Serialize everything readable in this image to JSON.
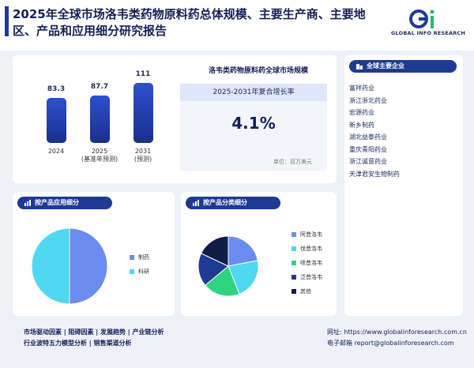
{
  "header": {
    "title": "2025年全球市场洛韦类药物原料药总体规模、主要生产商、主要地区、产品和应用细分研究报告",
    "logo_text": "GLOBAL INFO RESEARCH"
  },
  "market": {
    "title": "洛韦类药物原料药全球市场规模",
    "cagr_label": "2025-2031年复合增长率",
    "cagr_value": "4.1%",
    "unit": "单位：百万美元",
    "bars": [
      {
        "value": "83.3",
        "year": "2024",
        "note": ""
      },
      {
        "value": "87.7",
        "year": "2025",
        "note": "(基准年预测)"
      },
      {
        "value": "111",
        "year": "2031",
        "note": "(预测)"
      }
    ]
  },
  "companies": {
    "title": "全球主要企业",
    "items": [
      "富祥药业",
      "浙江浙北药业",
      "宏源药业",
      "新乡制药",
      "湖北益泰药业",
      "重庆青阳药业",
      "浙江诚意药业",
      "天津君安生物制药"
    ]
  },
  "application": {
    "title": "按产品应用细分",
    "legend": [
      "制药",
      "科研"
    ]
  },
  "product_type": {
    "title": "按产品分类细分",
    "legend": [
      "阿昔洛韦",
      "伐昔洛韦",
      "喷昔洛韦",
      "泛昔洛韦",
      "其他"
    ]
  },
  "footer": {
    "line1": "市场驱动因素  |  阻碍因素  |  发展趋势  |  产业链分析",
    "line2": "行业波特五力模型分析  |  销售渠道分析",
    "website": "网址: https://www.globalinforesearch.com.cn",
    "email": "电子邮箱 report@globalinforesearch.com"
  },
  "chart_data": [
    {
      "type": "bar",
      "title": "洛韦类药物原料药全球市场规模",
      "categories": [
        "2024",
        "2025",
        "2031"
      ],
      "values": [
        83.3,
        87.7,
        111
      ]
    },
    {
      "type": "pie",
      "title": "按产品应用细分",
      "categories": [
        "制药",
        "科研"
      ],
      "values": [
        50,
        50
      ],
      "colors": [
        "#6b8cef",
        "#4fd8f0"
      ]
    },
    {
      "type": "pie",
      "title": "按产品分类细分",
      "categories": [
        "阿昔洛韦",
        "伐昔洛韦",
        "喷昔洛韦",
        "泛昔洛韦",
        "其他"
      ],
      "values": [
        22,
        22,
        20,
        18,
        18
      ],
      "colors": [
        "#6b8cef",
        "#4fd8f0",
        "#2ed47f",
        "#1f3a93",
        "#0f1d45"
      ]
    }
  ]
}
